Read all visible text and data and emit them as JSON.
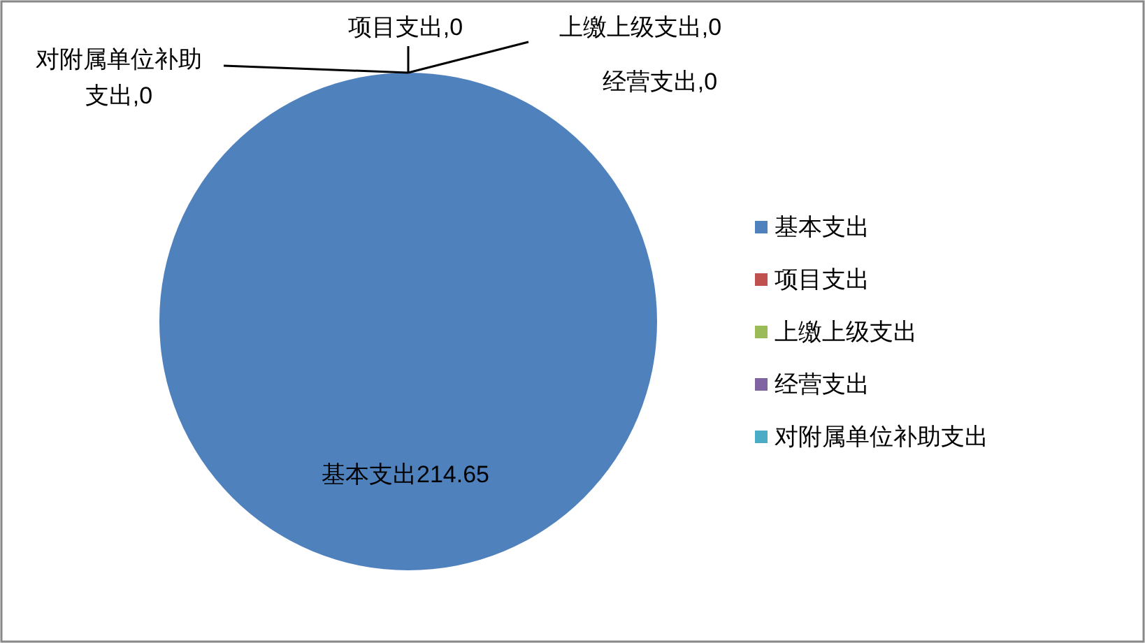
{
  "chart_data": {
    "type": "pie",
    "categories": [
      "基本支出",
      "项目支出",
      "上缴上级支出",
      "经营支出",
      "对附属单位补助支出"
    ],
    "values": [
      214.65,
      0,
      0,
      0,
      0
    ],
    "colors": [
      "#4f81bd",
      "#c0504d",
      "#9bbb59",
      "#8064a2",
      "#4bacc6"
    ],
    "value_labels": [
      "基本支出214.65",
      "项目支出,0",
      "上缴上级支出,0",
      "经营支出,0",
      "对附属单位补助支出,0"
    ],
    "legend": "right"
  }
}
